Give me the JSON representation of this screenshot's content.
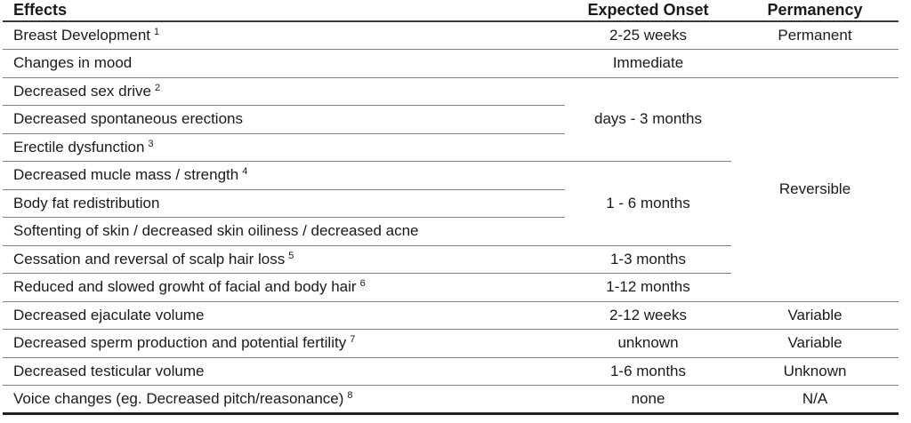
{
  "table": {
    "headers": {
      "effects": "Effects",
      "onset": "Expected Onset",
      "permanency": "Permanency"
    },
    "rows": [
      {
        "effect": "Breast Development",
        "sup": "1",
        "onset": "2-25 weeks",
        "permanency": "Permanent"
      },
      {
        "effect": "Changes in mood",
        "onset": "Immediate",
        "permanency": ""
      },
      {
        "effect": "Decreased sex drive",
        "sup": "2",
        "onset": "days - 3 months",
        "permanency": "Reversible"
      },
      {
        "effect": "Decreased spontaneous erections"
      },
      {
        "effect": "Erectile dysfunction",
        "sup": "3"
      },
      {
        "effect": "Decreased mucle mass / strength",
        "sup": "4",
        "onset": "1 - 6 months"
      },
      {
        "effect": "Body fat redistribution"
      },
      {
        "effect": "Softenting of skin / decreased skin oiliness / decreased acne"
      },
      {
        "effect": "Cessation and reversal of scalp hair loss",
        "sup": "5",
        "onset": "1-3 months"
      },
      {
        "effect": "Reduced and slowed growht of facial and body hair",
        "sup": "6",
        "onset": "1-12 months"
      },
      {
        "effect": "Decreased ejaculate volume",
        "onset": "2-12 weeks",
        "permanency": "Variable"
      },
      {
        "effect": "Decreased sperm production and potential fertility",
        "sup": "7",
        "onset": "unknown",
        "permanency": "Variable"
      },
      {
        "effect": "Decreased testicular volume",
        "onset": "1-6 months",
        "permanency": "Unknown"
      },
      {
        "effect": "Voice changes (eg. Decreased pitch/reasonance)",
        "sup": "8",
        "onset": "none",
        "permanency": "N/A"
      }
    ],
    "merges": {
      "onset_rows_3_to_5": "days - 3 months",
      "onset_rows_6_to_8": "1 - 6 months",
      "permanency_rows_3_to_10": "Reversible"
    }
  },
  "colors": {
    "background": "#ffffff",
    "text": "#1a1a1a",
    "row_line": "#808080",
    "header_line": "#3a3a3a",
    "bottom_line": "#202020"
  }
}
